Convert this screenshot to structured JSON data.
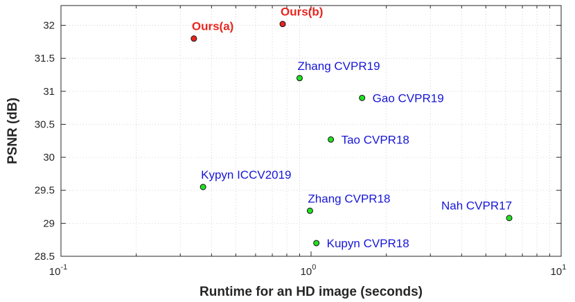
{
  "chart_data": {
    "type": "scatter",
    "xscale": "log",
    "xlim": [
      0.1,
      10
    ],
    "ylim": [
      28.5,
      32.3
    ],
    "grid": true,
    "xlabel": "Runtime for an HD image (seconds)",
    "ylabel": "PSNR (dB)",
    "x_ticks": [
      {
        "base": "10",
        "exp": "-1",
        "value": 0.1
      },
      {
        "base": "10",
        "exp": "0",
        "value": 1
      },
      {
        "base": "10",
        "exp": "1",
        "value": 10
      }
    ],
    "y_ticks": [
      "28.5",
      "29",
      "29.5",
      "30",
      "30.5",
      "31",
      "31.5",
      "32"
    ],
    "points": [
      {
        "label": "Ours(a)",
        "x": 0.34,
        "y": 31.8,
        "color": "#e8251f",
        "label_color": "#e8251f",
        "bold": true,
        "label_pos": "above"
      },
      {
        "label": "Ours(b)",
        "x": 0.77,
        "y": 32.02,
        "color": "#e8251f",
        "label_color": "#e8251f",
        "bold": true,
        "label_pos": "above"
      },
      {
        "label": "Zhang CVPR19",
        "x": 0.9,
        "y": 31.2,
        "color": "#22e022",
        "label_color": "#1616d8",
        "bold": false,
        "label_pos": "above"
      },
      {
        "label": "Gao CVPR19",
        "x": 1.6,
        "y": 30.9,
        "color": "#22e022",
        "label_color": "#1616d8",
        "bold": false,
        "label_pos": "right"
      },
      {
        "label": "Tao CVPR18",
        "x": 1.2,
        "y": 30.27,
        "color": "#22e022",
        "label_color": "#1616d8",
        "bold": false,
        "label_pos": "right"
      },
      {
        "label": "Kypyn ICCV2019",
        "x": 0.37,
        "y": 29.55,
        "color": "#22e022",
        "label_color": "#1616d8",
        "bold": false,
        "label_pos": "above"
      },
      {
        "label": "Zhang CVPR18",
        "x": 0.99,
        "y": 29.19,
        "color": "#22e022",
        "label_color": "#1616d8",
        "bold": false,
        "label_pos": "above"
      },
      {
        "label": "Nah CVPR17",
        "x": 6.2,
        "y": 29.08,
        "color": "#22e022",
        "label_color": "#1616d8",
        "bold": false,
        "label_pos": "above-left"
      },
      {
        "label": "Kupyn CVPR18",
        "x": 1.05,
        "y": 28.7,
        "color": "#22e022",
        "label_color": "#1616d8",
        "bold": false,
        "label_pos": "right"
      }
    ]
  }
}
